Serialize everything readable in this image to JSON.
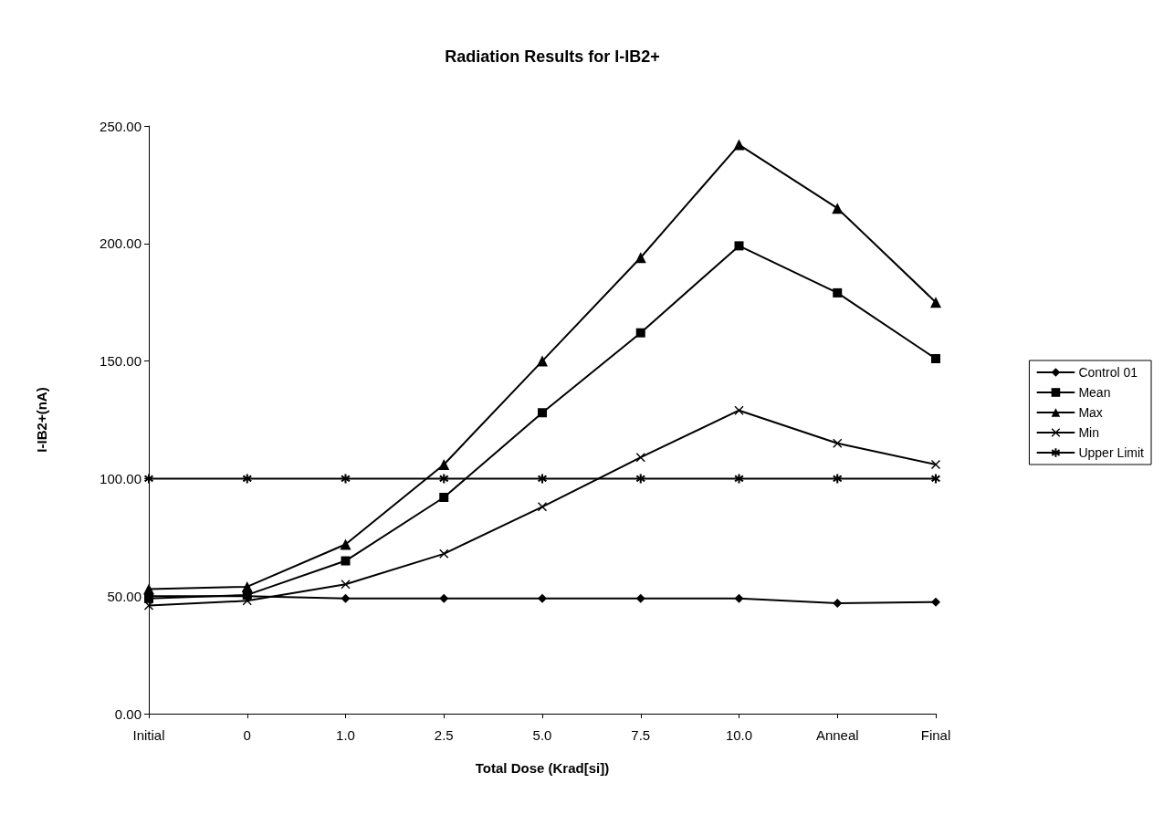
{
  "chart_data": {
    "type": "line",
    "title": "Radiation Results for I-IB2+",
    "xlabel": "Total Dose (Krad[si])",
    "ylabel": "I-IB2+(nA)",
    "categories": [
      "Initial",
      "0",
      "1.0",
      "2.5",
      "5.0",
      "7.5",
      "10.0",
      "Anneal",
      "Final"
    ],
    "series": [
      {
        "name": "Control 01",
        "color": "#000000",
        "marker": "diamond",
        "values": [
          50,
          50,
          49,
          49,
          49,
          49,
          49,
          47,
          47.5
        ]
      },
      {
        "name": "Mean",
        "color": "#000000",
        "marker": "square",
        "values": [
          49,
          50.5,
          65,
          92,
          128,
          162,
          199,
          179,
          151
        ]
      },
      {
        "name": "Max",
        "color": "#000000",
        "marker": "triangle",
        "values": [
          53,
          54,
          72,
          106,
          150,
          194,
          242,
          215,
          175
        ]
      },
      {
        "name": "Min",
        "color": "#000000",
        "marker": "cross",
        "values": [
          46,
          48,
          55,
          68,
          88,
          109,
          129,
          115,
          106
        ]
      },
      {
        "name": "Upper Limit",
        "color": "#000000",
        "marker": "star",
        "values": [
          100,
          100,
          100,
          100,
          100,
          100,
          100,
          100,
          100
        ]
      }
    ],
    "ylim": [
      0,
      250
    ],
    "yticks": [
      {
        "value": 0,
        "label": "0.00"
      },
      {
        "value": 50,
        "label": "50.00"
      },
      {
        "value": 100,
        "label": "100.00"
      },
      {
        "value": 150,
        "label": "150.00"
      },
      {
        "value": 200,
        "label": "200.00"
      },
      {
        "value": 250,
        "label": "250.00"
      }
    ],
    "grid": false,
    "legend": "right"
  }
}
